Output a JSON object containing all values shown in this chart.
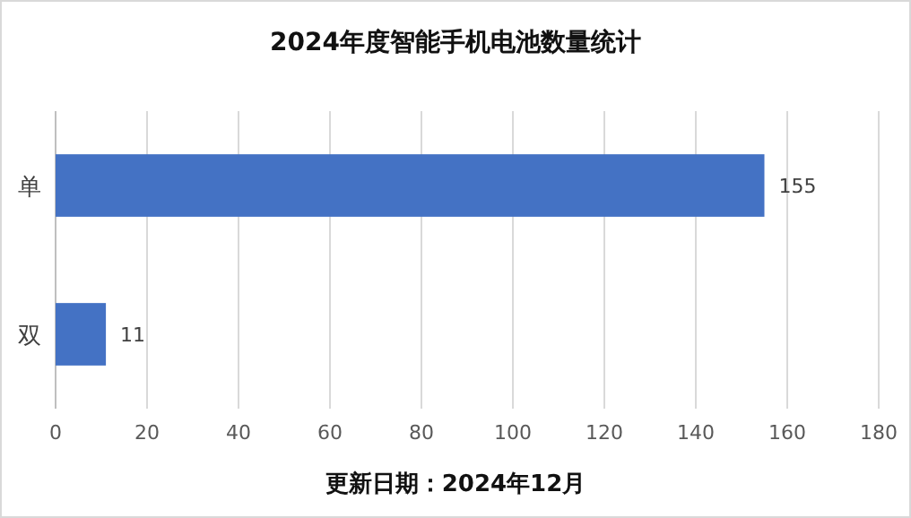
{
  "chart_data": {
    "type": "bar",
    "orientation": "horizontal",
    "title": "2024年度智能手机电池数量统计",
    "categories": [
      "单",
      "双"
    ],
    "values": [
      155,
      11
    ],
    "color": "#4472c4",
    "xlim": [
      0,
      180
    ],
    "xticks": [
      0,
      20,
      40,
      60,
      80,
      100,
      120,
      140,
      160,
      180
    ],
    "grid": "x",
    "data_labels": true,
    "annotations": [
      "更新日期：2024年12月"
    ]
  }
}
